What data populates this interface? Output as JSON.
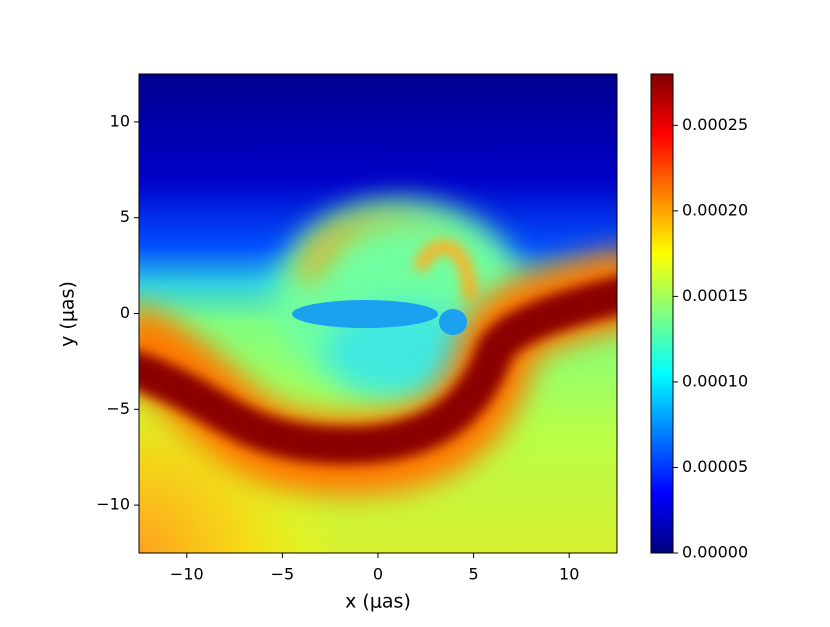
{
  "chart_data": {
    "type": "heatmap",
    "x_label": "x (μas)",
    "y_label": "y (μas)",
    "xlim": [
      -12.5,
      12.5
    ],
    "xticks": [
      {
        "value": -10,
        "label": "−10"
      },
      {
        "value": -5,
        "label": "−5"
      },
      0,
      5,
      10
    ],
    "ylim": [
      -12.5,
      12.5
    ],
    "yticks": [
      {
        "value": -10,
        "label": "−10"
      },
      {
        "value": -5,
        "label": "−5"
      },
      0,
      5,
      10
    ],
    "colormap": "jet",
    "clim": [
      0,
      0.00028
    ],
    "cticks": [
      {
        "value": 0,
        "label": "0.00000"
      },
      {
        "value": 5e-05,
        "label": "0.00005"
      },
      {
        "value": 0.0001,
        "label": "0.00010"
      },
      {
        "value": 0.00015,
        "label": "0.00015"
      },
      {
        "value": 0.0002,
        "label": "0.00020"
      },
      {
        "value": 0.00025,
        "label": "0.00025"
      }
    ]
  }
}
